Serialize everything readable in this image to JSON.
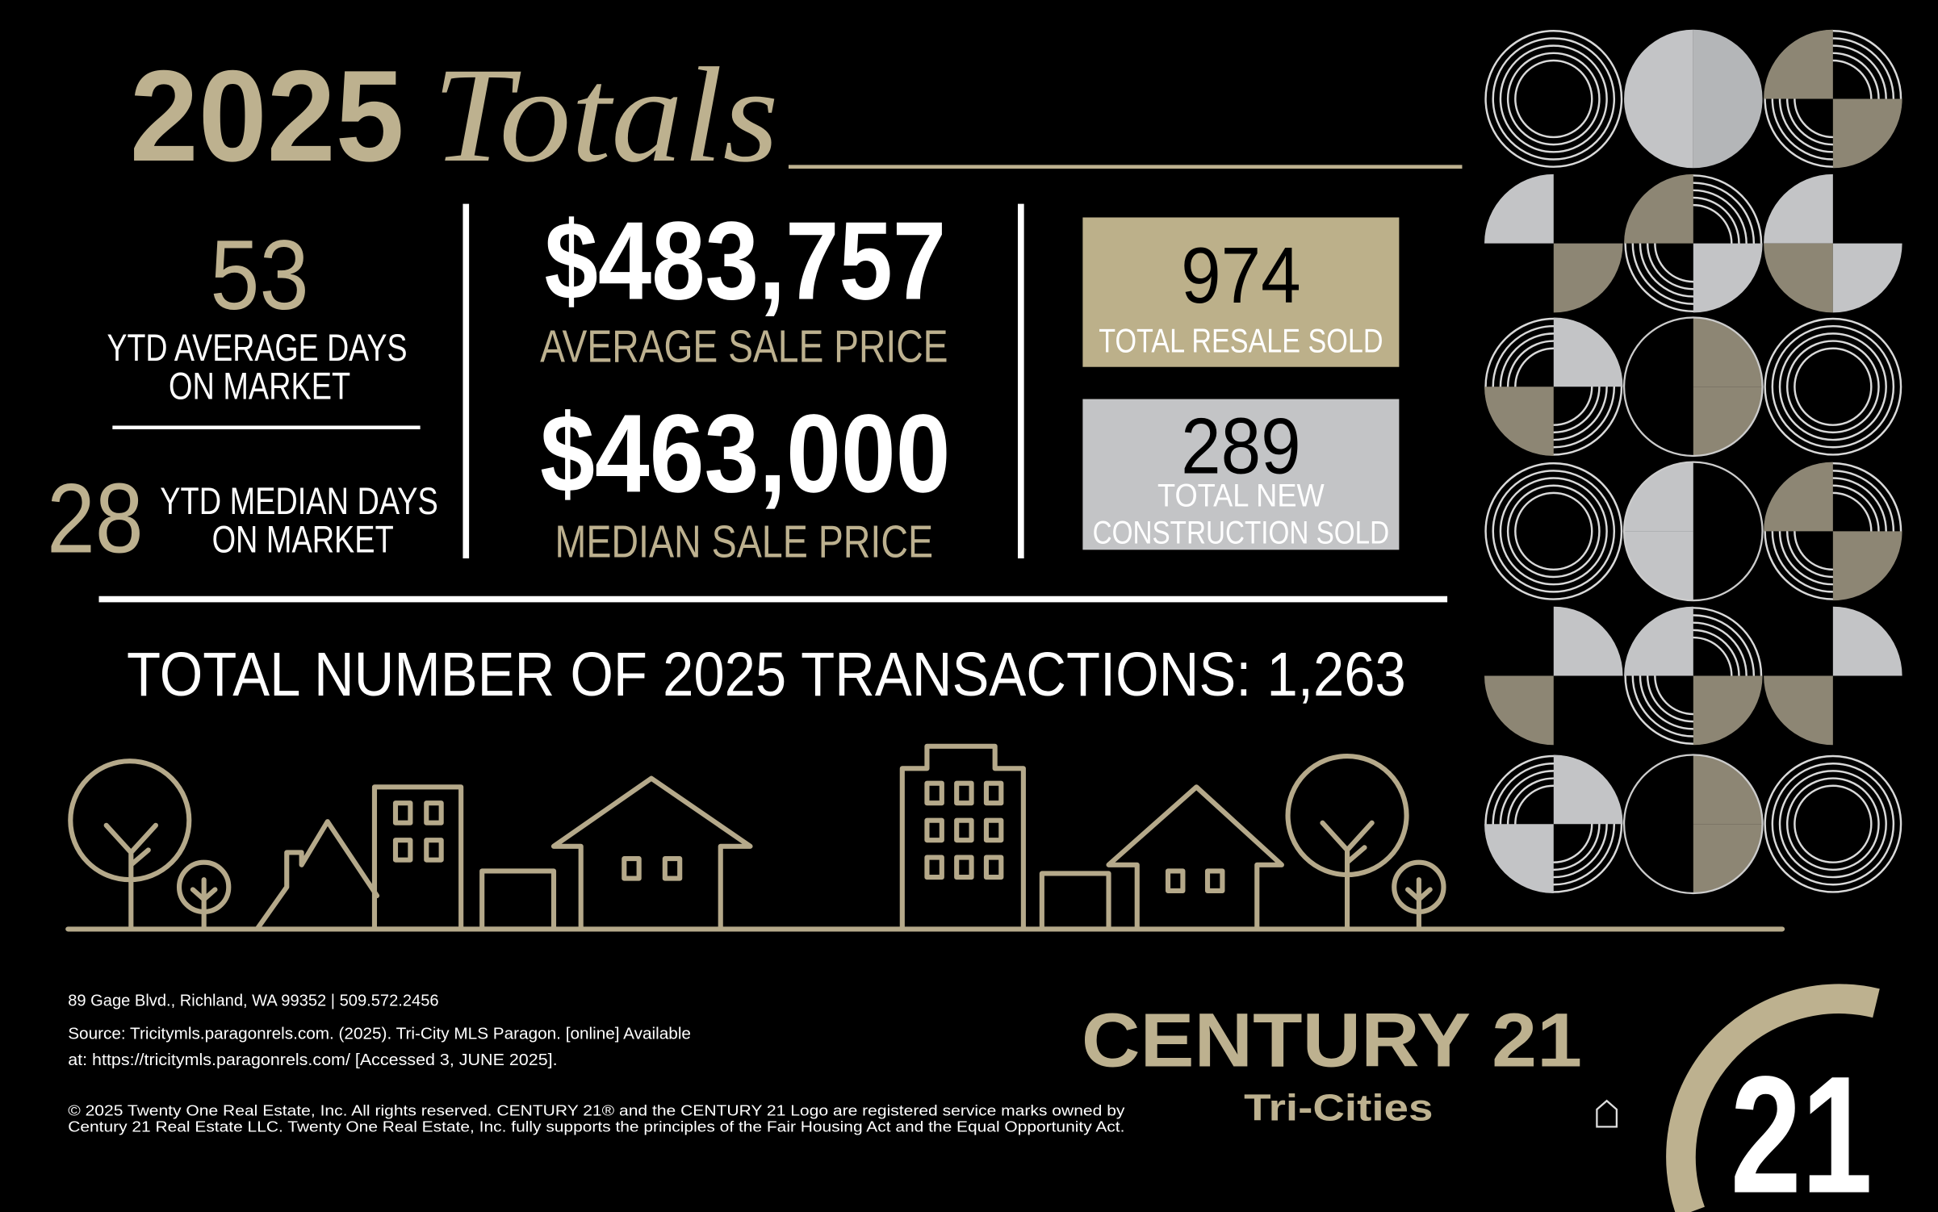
{
  "header": {
    "year": "2025",
    "title": "Totals"
  },
  "stats": {
    "avg_days": {
      "value": "53",
      "label_lines": [
        "YTD AVERAGE DAYS",
        "ON MARKET"
      ]
    },
    "median_days": {
      "value": "28",
      "label_lines": [
        "YTD MEDIAN DAYS",
        "ON MARKET"
      ]
    },
    "avg_price": {
      "value": "$483,757",
      "label": "AVERAGE SALE PRICE"
    },
    "median_price": {
      "value": "$463,000",
      "label": "MEDIAN SALE PRICE"
    },
    "resale": {
      "value": "974",
      "label": "TOTAL RESALE SOLD"
    },
    "new_construction": {
      "value": "289",
      "label_lines": [
        "TOTAL NEW",
        "CONSTRUCTION SOLD"
      ]
    }
  },
  "total_transactions": "TOTAL NUMBER OF 2025 TRANSACTIONS: 1,263",
  "footer": {
    "address": "89 Gage Blvd., Richland, WA 99352 | 509.572.2456",
    "source_lines": [
      "Source: Tricitymls.paragonrels.com. (2025). Tri-City MLS Paragon. [online] Available",
      "at: https://tricitymls.paragonrels.com/ [Accessed 3, JUNE 2025]."
    ],
    "copyright_lines": [
      "© 2025 Twenty One Real Estate, Inc. All rights reserved. CENTURY 21® and the CENTURY 21 Logo are registered service marks owned by",
      "Century 21 Real Estate LLC. Twenty One Real Estate, Inc. fully supports the principles of the Fair Housing Act and the Equal Opportunity Act."
    ]
  },
  "logo": {
    "brand": "CENTURY 21",
    "office": "Tri-Cities",
    "mark": "21"
  }
}
